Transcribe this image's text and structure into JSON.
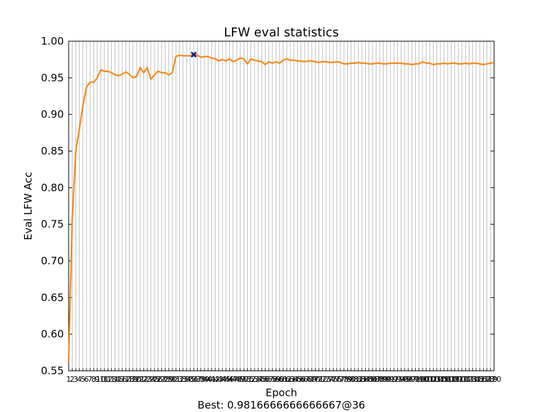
{
  "chart_data": {
    "type": "line",
    "title": "LFW eval statistics",
    "xlabel": "Epoch",
    "ylabel": "Eval LFW Acc",
    "footer": "Best: 0.9816666666666667@36",
    "xlim": [
      1,
      120
    ],
    "ylim": [
      0.55,
      1.0
    ],
    "yticks": [
      0.55,
      0.6,
      0.65,
      0.7,
      0.75,
      0.8,
      0.85,
      0.9,
      0.95,
      1.0
    ],
    "grid": "vertical",
    "best": {
      "x": 36,
      "y": 0.9816666666666667
    },
    "colors": {
      "line": "#f28a1c",
      "marker": "#1a1a8c",
      "grid": "#b0b0b0",
      "axis": "#000000"
    },
    "x": [
      1,
      2,
      3,
      4,
      5,
      6,
      7,
      8,
      9,
      10,
      11,
      12,
      13,
      14,
      15,
      16,
      17,
      18,
      19,
      20,
      21,
      22,
      23,
      24,
      25,
      26,
      27,
      28,
      29,
      30,
      31,
      32,
      33,
      34,
      35,
      36,
      37,
      38,
      39,
      40,
      41,
      42,
      43,
      44,
      45,
      46,
      47,
      48,
      49,
      50,
      51,
      52,
      53,
      54,
      55,
      56,
      57,
      58,
      59,
      60,
      61,
      62,
      63,
      64,
      65,
      66,
      67,
      68,
      69,
      70,
      71,
      72,
      73,
      74,
      75,
      76,
      77,
      78,
      79,
      80,
      81,
      82,
      83,
      84,
      85,
      86,
      87,
      88,
      89,
      90,
      91,
      92,
      93,
      94,
      95,
      96,
      97,
      98,
      99,
      100,
      101,
      102,
      103,
      104,
      105,
      106,
      107,
      108,
      109,
      110,
      111,
      112,
      113,
      114,
      115,
      116,
      117,
      118,
      119,
      120
    ],
    "series": [
      {
        "values": [
          0.562,
          0.755,
          0.85,
          0.88,
          0.912,
          0.937,
          0.944,
          0.944,
          0.95,
          0.961,
          0.959,
          0.959,
          0.957,
          0.954,
          0.953,
          0.955,
          0.958,
          0.955,
          0.95,
          0.952,
          0.964,
          0.957,
          0.964,
          0.948,
          0.954,
          0.959,
          0.957,
          0.957,
          0.954,
          0.957,
          0.979,
          0.981,
          0.98,
          0.98,
          0.98,
          0.982,
          0.981,
          0.978,
          0.979,
          0.979,
          0.977,
          0.976,
          0.973,
          0.975,
          0.973,
          0.976,
          0.972,
          0.974,
          0.977,
          0.976,
          0.969,
          0.976,
          0.974,
          0.973,
          0.972,
          0.968,
          0.972,
          0.97,
          0.972,
          0.97,
          0.974,
          0.976,
          0.974,
          0.974,
          0.973,
          0.973,
          0.972,
          0.973,
          0.973,
          0.972,
          0.971,
          0.972,
          0.972,
          0.971,
          0.971,
          0.972,
          0.971,
          0.969,
          0.969,
          0.97,
          0.97,
          0.971,
          0.97,
          0.97,
          0.969,
          0.969,
          0.97,
          0.97,
          0.969,
          0.969,
          0.97,
          0.97,
          0.97,
          0.97,
          0.969,
          0.969,
          0.968,
          0.969,
          0.969,
          0.972,
          0.97,
          0.97,
          0.968,
          0.969,
          0.969,
          0.97,
          0.969,
          0.97,
          0.97,
          0.969,
          0.969,
          0.97,
          0.969,
          0.97,
          0.97,
          0.969,
          0.968,
          0.969,
          0.97,
          0.971
        ]
      }
    ]
  }
}
